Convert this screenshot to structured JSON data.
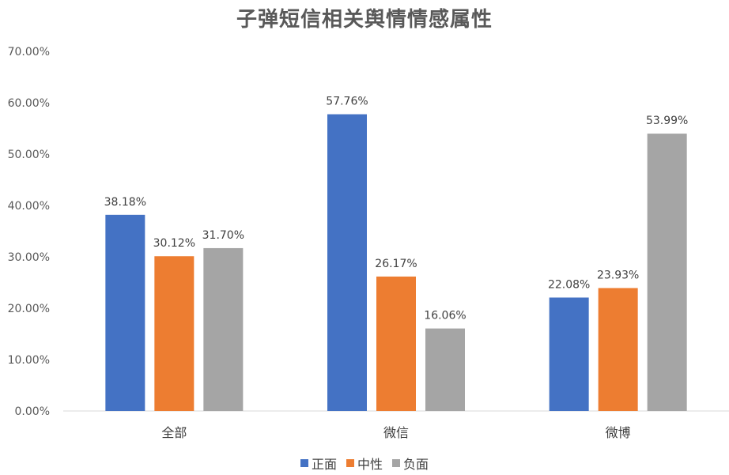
{
  "chart_data": {
    "type": "bar",
    "title": "子弹短信相关舆情情感属性",
    "xlabel": "",
    "ylabel": "",
    "categories": [
      "全部",
      "微信",
      "微博"
    ],
    "series": [
      {
        "name": "正面",
        "color": "#4472C4",
        "values": [
          38.18,
          57.76,
          22.08
        ],
        "labels": [
          "38.18%",
          "57.76%",
          "22.08%"
        ]
      },
      {
        "name": "中性",
        "color": "#ED7D31",
        "values": [
          30.12,
          26.17,
          23.93
        ],
        "labels": [
          "30.12%",
          "26.17%",
          "23.93%"
        ]
      },
      {
        "name": "负面",
        "color": "#A5A5A5",
        "values": [
          31.7,
          16.06,
          53.99
        ],
        "labels": [
          "31.70%",
          "16.06%",
          "53.99%"
        ]
      }
    ],
    "ylim": [
      0,
      70
    ],
    "yticks": [
      "0.00%",
      "10.00%",
      "20.00%",
      "30.00%",
      "40.00%",
      "50.00%",
      "60.00%",
      "70.00%"
    ],
    "grid": false,
    "legend_position": "bottom"
  }
}
